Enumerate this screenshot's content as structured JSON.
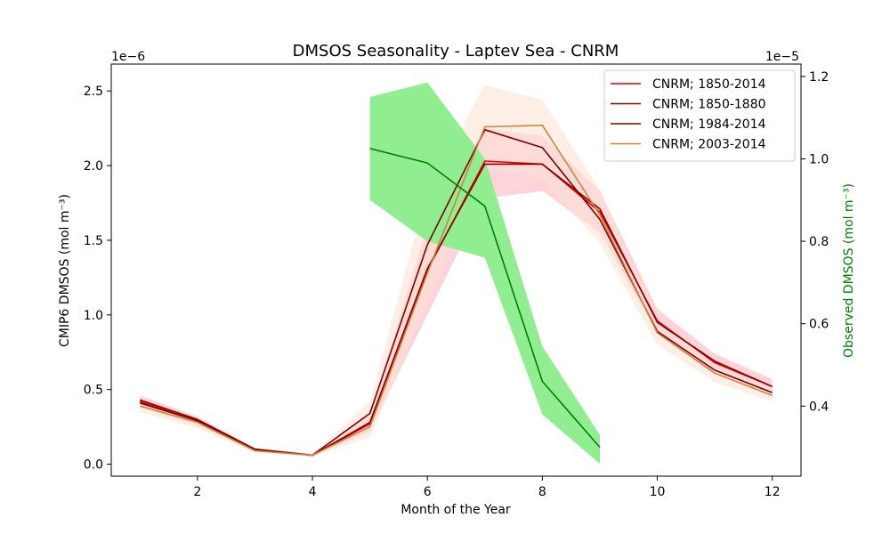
{
  "chart_data": {
    "type": "line",
    "title": "DMSOS Seasonality - Laptev Sea - CNRM",
    "xlabel": "Month of the Year",
    "ylabel_left": "CMIP6 DMSOS (mol m⁻³)",
    "ylabel_right": "Observed DMSOS (mol m⁻³)",
    "offset_left": "1e−6",
    "offset_right": "1e−5",
    "xlim": [
      0.5,
      12.5
    ],
    "ylim_left": [
      -0.08,
      2.68
    ],
    "ylim_right": [
      0.23,
      1.23
    ],
    "x_ticks": [
      2,
      4,
      6,
      8,
      10,
      12
    ],
    "x_tick_labels": [
      "2",
      "4",
      "6",
      "8",
      "10",
      "12"
    ],
    "y_left_ticks": [
      0.0,
      0.5,
      1.0,
      1.5,
      2.0,
      2.5
    ],
    "y_left_tick_labels": [
      "0.0",
      "0.5",
      "1.0",
      "1.5",
      "2.0",
      "2.5"
    ],
    "y_right_ticks": [
      0.4,
      0.6,
      0.8,
      1.0,
      1.2
    ],
    "y_right_tick_labels": [
      "0.4",
      "0.6",
      "0.8",
      "1.0",
      "1.2"
    ],
    "legend_position": "top-right",
    "grid": false,
    "x": [
      1,
      2,
      3,
      4,
      5,
      6,
      7,
      8,
      9,
      10,
      11,
      12
    ],
    "series": [
      {
        "name": "CNRM; 1850-2014",
        "color": "#e50000",
        "band_color": "#ffb6c1",
        "values": [
          0.42,
          0.29,
          0.1,
          0.06,
          0.27,
          1.3,
          2.03,
          2.01,
          1.69,
          0.96,
          0.68,
          0.52
        ],
        "lower": [
          0.38,
          0.26,
          0.09,
          0.05,
          0.22,
          1.0,
          1.78,
          1.83,
          1.55,
          0.88,
          0.62,
          0.47
        ],
        "upper": [
          0.46,
          0.32,
          0.11,
          0.07,
          0.33,
          1.6,
          2.25,
          2.2,
          1.83,
          1.04,
          0.74,
          0.57
        ]
      },
      {
        "name": "CNRM; 1850-1880",
        "color": "#8b0000",
        "values": [
          0.43,
          0.3,
          0.1,
          0.06,
          0.28,
          1.31,
          2.01,
          2.01,
          1.71,
          0.95,
          0.69,
          0.52
        ]
      },
      {
        "name": "CNRM; 1984-2014",
        "color": "#800000",
        "values": [
          0.41,
          0.29,
          0.1,
          0.06,
          0.34,
          1.47,
          2.24,
          2.12,
          1.64,
          0.89,
          0.63,
          0.48
        ]
      },
      {
        "name": "CNRM; 2003-2014",
        "color": "#cd853f",
        "band_color": "#fbe3d5",
        "values": [
          0.39,
          0.28,
          0.09,
          0.06,
          0.25,
          1.28,
          2.26,
          2.27,
          1.67,
          0.88,
          0.61,
          0.46
        ],
        "lower": [
          0.35,
          0.24,
          0.08,
          0.05,
          0.18,
          1.08,
          1.98,
          1.91,
          1.48,
          0.8,
          0.55,
          0.42
        ],
        "upper": [
          0.43,
          0.32,
          0.11,
          0.07,
          0.42,
          1.83,
          2.54,
          2.44,
          1.84,
          0.97,
          0.68,
          0.51
        ]
      }
    ],
    "observed": {
      "color": "#008000",
      "band_color": "#90ee90",
      "x": [
        5,
        6,
        7,
        8,
        9
      ],
      "values": [
        1.025,
        0.99,
        0.885,
        0.46,
        0.3
      ],
      "lower": [
        0.9,
        0.8,
        0.76,
        0.38,
        0.26
      ],
      "upper": [
        1.15,
        1.185,
        1.0,
        0.545,
        0.33
      ]
    }
  }
}
